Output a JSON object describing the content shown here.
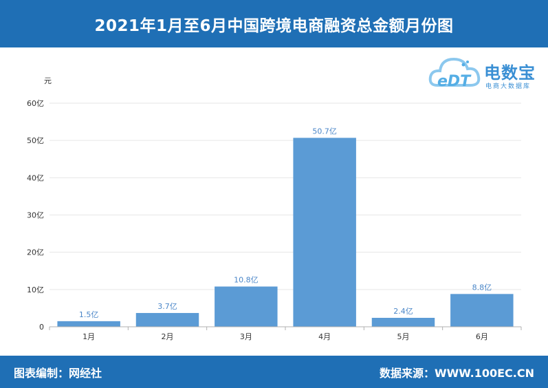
{
  "header": {
    "title": "2021年1月至6月中国跨境电商融资总金额月份图"
  },
  "logo": {
    "brand": "电数宝",
    "sub": "电商大数据库",
    "mark": "eDT"
  },
  "footer": {
    "left": "图表编制：网经社",
    "right": "数据来源：WWW.100EC.CN"
  },
  "colors": {
    "bar": "#5b9bd5",
    "header": "#1f6fb5",
    "label": "#4a86c8"
  },
  "chart_data": {
    "type": "bar",
    "categories": [
      "1月",
      "2月",
      "3月",
      "4月",
      "5月",
      "6月"
    ],
    "values": [
      1.5,
      3.7,
      10.8,
      50.7,
      2.4,
      8.8
    ],
    "data_labels": [
      "1.5亿",
      "3.7亿",
      "10.8亿",
      "50.7亿",
      "2.4亿",
      "8.8亿"
    ],
    "ylabel": "元",
    "ylim": [
      0,
      60
    ],
    "yticks": [
      0,
      10,
      20,
      30,
      40,
      50,
      60
    ],
    "ytick_labels": [
      "0",
      "10亿",
      "20亿",
      "30亿",
      "40亿",
      "50亿",
      "60亿"
    ],
    "grid": true,
    "legend": "none"
  }
}
